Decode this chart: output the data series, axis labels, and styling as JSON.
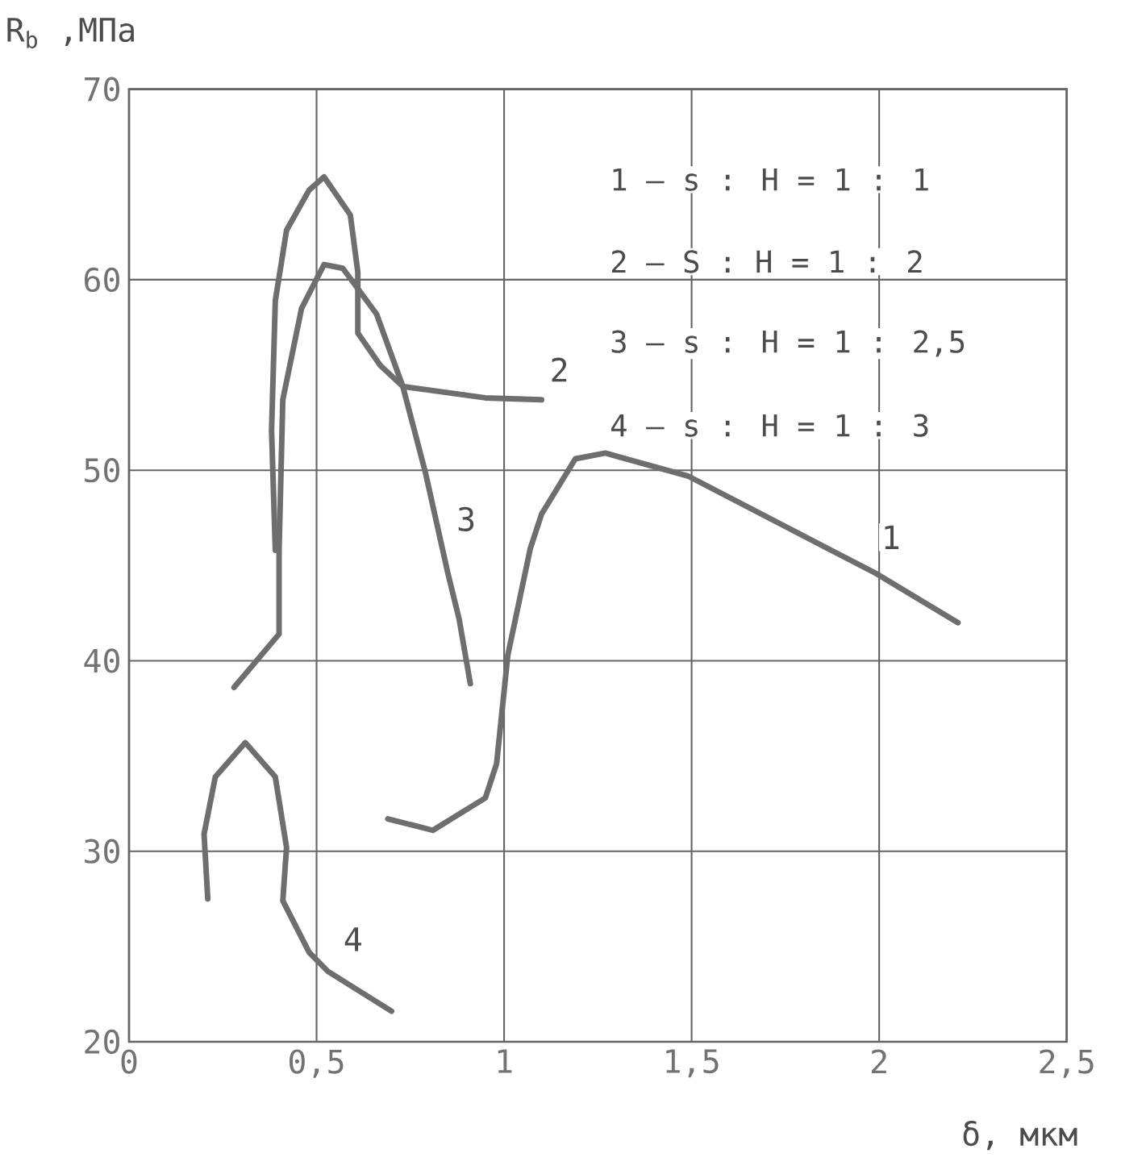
{
  "chart_data": {
    "type": "line",
    "xlabel": "δ, мкм",
    "ylabel": "R$_{b}$ ,МПа",
    "xlim": [
      0,
      2.5
    ],
    "ylim": [
      20,
      70
    ],
    "xticks": [
      {
        "value": 0,
        "label": "0"
      },
      {
        "value": 0.5,
        "label": "0,5"
      },
      {
        "value": 1,
        "label": "1"
      },
      {
        "value": 1.5,
        "label": "1,5"
      },
      {
        "value": 2,
        "label": "2"
      },
      {
        "value": 2.5,
        "label": "2,5"
      }
    ],
    "yticks": [
      20,
      30,
      40,
      50,
      60,
      70
    ],
    "grid": true,
    "marker": "none",
    "line_style": "solid",
    "series": [
      {
        "name": "1",
        "color": "#6e6e6e",
        "x": [
          0.69,
          0.81,
          0.95,
          0.98,
          1.01,
          1.07,
          1.1,
          1.19,
          1.27,
          1.49,
          1.99,
          2.21
        ],
        "values": [
          31.7,
          31.1,
          32.8,
          34.6,
          40.3,
          45.9,
          47.7,
          50.6,
          50.9,
          49.7,
          44.6,
          42.0
        ]
      },
      {
        "name": "2",
        "color": "#6e6e6e",
        "x": [
          0.39,
          0.38,
          0.39,
          0.42,
          0.48,
          0.52,
          0.59,
          0.61,
          0.61,
          0.67,
          0.73,
          0.95,
          1.1
        ],
        "values": [
          45.8,
          52.1,
          58.9,
          62.6,
          64.7,
          65.4,
          63.4,
          60.4,
          57.2,
          55.5,
          54.4,
          53.8,
          53.7
        ]
      },
      {
        "name": "3",
        "color": "#6e6e6e",
        "x": [
          0.28,
          0.4,
          0.4,
          0.41,
          0.46,
          0.52,
          0.57,
          0.66,
          0.73,
          0.79,
          0.85,
          0.88,
          0.91
        ],
        "values": [
          38.6,
          41.4,
          45.8,
          53.7,
          58.5,
          60.8,
          60.6,
          58.2,
          54.4,
          49.9,
          44.6,
          42.2,
          38.8
        ]
      },
      {
        "name": "4",
        "color": "#6e6e6e",
        "x": [
          0.21,
          0.2,
          0.23,
          0.31,
          0.39,
          0.42,
          0.41,
          0.48,
          0.53,
          0.7
        ],
        "values": [
          27.5,
          30.9,
          33.9,
          35.7,
          33.9,
          30.2,
          27.4,
          24.7,
          23.7,
          21.6
        ]
      }
    ],
    "annotations": [
      "1 – s : H = 1 : 1",
      "2 – S : H = 1 : 2",
      "3 – s : H = 1 : 2,5",
      "4 – s : H = 1 : 3"
    ]
  }
}
